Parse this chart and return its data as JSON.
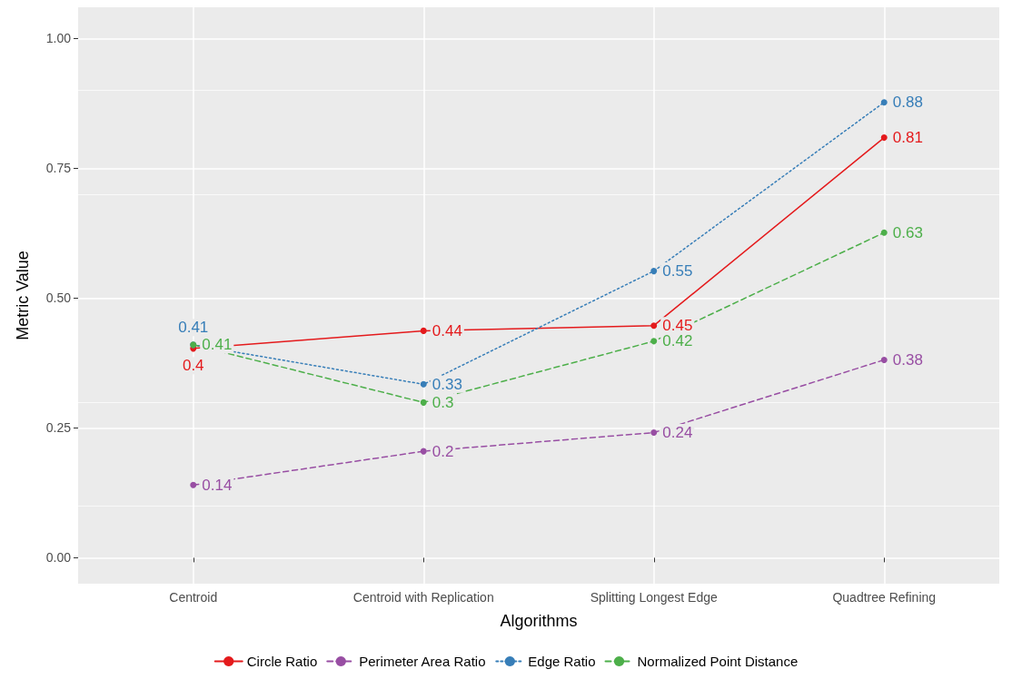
{
  "chart_data": {
    "type": "line",
    "xlabel": "Algorithms",
    "ylabel": "Metric Value",
    "categories": [
      "Centroid",
      "Centroid with Replication",
      "Splitting Longest Edge",
      "Quadtree Refining"
    ],
    "series": [
      {
        "name": "Circle Ratio",
        "color": "#e41a1c",
        "line_style": "solid",
        "values": [
          0.403,
          0.437,
          0.447,
          0.809
        ],
        "value_labels": [
          "0.4",
          "0.44",
          "0.45",
          "0.81"
        ]
      },
      {
        "name": "Perimeter Area Ratio",
        "color": "#984ea3",
        "line_style": "dashed",
        "values": [
          0.14,
          0.205,
          0.241,
          0.381
        ],
        "value_labels": [
          "0.14",
          "0.2",
          "0.24",
          "0.38"
        ]
      },
      {
        "name": "Edge Ratio",
        "color": "#377eb8",
        "line_style": "dotted",
        "values": [
          0.41,
          0.334,
          0.552,
          0.877
        ],
        "value_labels": [
          "0.41",
          "0.33",
          "0.55",
          "0.88"
        ]
      },
      {
        "name": "Normalized Point Distance",
        "color": "#4daf4a",
        "line_style": "dashed",
        "values": [
          0.41,
          0.299,
          0.417,
          0.626
        ],
        "value_labels": [
          "0.41",
          "0.3",
          "0.42",
          "0.63"
        ]
      }
    ],
    "ylim": [
      -0.05,
      1.06
    ],
    "yticks": [
      {
        "value": 0,
        "label": "0.00"
      },
      {
        "value": 0.25,
        "label": "0.25"
      },
      {
        "value": 0.5,
        "label": "0.50"
      },
      {
        "value": 0.75,
        "label": "0.75"
      },
      {
        "value": 1,
        "label": "1.00"
      }
    ],
    "grid": true,
    "legend": "bottom",
    "marker": "circle"
  }
}
